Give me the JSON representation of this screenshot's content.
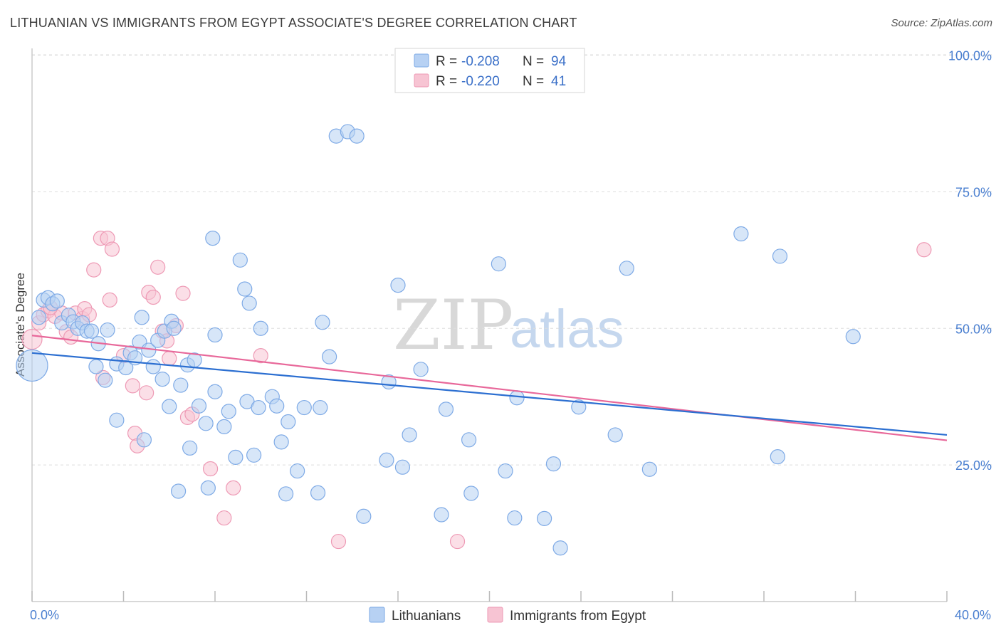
{
  "title": "LITHUANIAN VS IMMIGRANTS FROM EGYPT ASSOCIATE'S DEGREE CORRELATION CHART",
  "source": "Source: ZipAtlas.com",
  "watermark": {
    "zip": "ZIP",
    "atlas": "atlas"
  },
  "colors": {
    "blue_fill": "#b7d1f3",
    "blue_stroke": "#7eaae6",
    "blue_line": "#2c6fd1",
    "pink_fill": "#f7c4d3",
    "pink_stroke": "#ee9ab5",
    "pink_line": "#e8689a",
    "axis_label": "#4a7fd0",
    "grid": "#dddddd"
  },
  "legend": {
    "rows": [
      {
        "r_label": "R =",
        "r_value": "-0.208",
        "n_label": "N =",
        "n_value": "94"
      },
      {
        "r_label": "R =",
        "r_value": "-0.220",
        "n_label": "N =",
        "n_value": "41"
      }
    ]
  },
  "chart_data": {
    "type": "scatter",
    "title": "LITHUANIAN VS IMMIGRANTS FROM EGYPT ASSOCIATE'S DEGREE CORRELATION CHART",
    "xlabel": "",
    "ylabel": "Associate's Degree",
    "xlim": [
      0,
      40
    ],
    "ylim": [
      0,
      102
    ],
    "x_tick_labels": [
      "0.0%",
      "40.0%"
    ],
    "y_ticks": [
      25,
      50,
      75,
      100
    ],
    "y_tick_labels": [
      "25.0%",
      "50.0%",
      "75.0%",
      "100.0%"
    ],
    "grid": "horizontal dashed",
    "series": [
      {
        "name": "Lithuanians",
        "color": "#b7d1f3",
        "regression": {
          "x": [
            0,
            40
          ],
          "y": [
            45.5,
            30.5
          ]
        },
        "points": [
          [
            0.0,
            43.2,
            22
          ],
          [
            0.3,
            52.0,
            10
          ],
          [
            0.5,
            55.2,
            10
          ],
          [
            0.7,
            55.6,
            10
          ],
          [
            0.9,
            54.5,
            10
          ],
          [
            1.1,
            55.0,
            10
          ],
          [
            1.3,
            51.0,
            10
          ],
          [
            1.6,
            52.4,
            10
          ],
          [
            1.8,
            51.2,
            10
          ],
          [
            2.0,
            50.0,
            10
          ],
          [
            2.2,
            51.0,
            10
          ],
          [
            2.4,
            49.5,
            10
          ],
          [
            2.6,
            49.5,
            10
          ],
          [
            2.9,
            47.2,
            10
          ],
          [
            3.3,
            49.7,
            10
          ],
          [
            2.8,
            43.0,
            10
          ],
          [
            3.2,
            40.5,
            10
          ],
          [
            3.7,
            43.5,
            10
          ],
          [
            4.1,
            42.8,
            10
          ],
          [
            4.3,
            45.5,
            10
          ],
          [
            4.5,
            44.6,
            10
          ],
          [
            4.7,
            47.5,
            10
          ],
          [
            4.8,
            52.0,
            10
          ],
          [
            5.1,
            46.0,
            10
          ],
          [
            5.3,
            43.0,
            10
          ],
          [
            5.5,
            47.8,
            10
          ],
          [
            5.7,
            40.7,
            10
          ],
          [
            5.8,
            49.5,
            10
          ],
          [
            6.1,
            51.3,
            10
          ],
          [
            6.2,
            50.0,
            10
          ],
          [
            6.5,
            39.6,
            10
          ],
          [
            6.8,
            43.3,
            10
          ],
          [
            7.1,
            44.2,
            10
          ],
          [
            3.7,
            33.2,
            10
          ],
          [
            4.9,
            29.6,
            10
          ],
          [
            6.0,
            35.7,
            10
          ],
          [
            7.3,
            35.8,
            10
          ],
          [
            7.6,
            32.6,
            10
          ],
          [
            8.0,
            38.4,
            10
          ],
          [
            8.4,
            32.0,
            10
          ],
          [
            8.6,
            34.8,
            10
          ],
          [
            9.4,
            36.6,
            10
          ],
          [
            9.9,
            35.5,
            10
          ],
          [
            10.5,
            37.5,
            10
          ],
          [
            10.7,
            35.8,
            10
          ],
          [
            11.2,
            32.9,
            10
          ],
          [
            11.9,
            35.5,
            10
          ],
          [
            12.6,
            35.5,
            10
          ],
          [
            6.9,
            28.1,
            10
          ],
          [
            8.9,
            26.4,
            10
          ],
          [
            9.7,
            26.8,
            10
          ],
          [
            10.9,
            29.2,
            10
          ],
          [
            11.6,
            23.9,
            10
          ],
          [
            12.5,
            19.9,
            10
          ],
          [
            6.4,
            20.2,
            10
          ],
          [
            7.7,
            20.8,
            10
          ],
          [
            11.1,
            19.7,
            10
          ],
          [
            7.9,
            66.5,
            10
          ],
          [
            9.1,
            62.5,
            10
          ],
          [
            9.3,
            57.2,
            10
          ],
          [
            9.5,
            54.6,
            10
          ],
          [
            10.0,
            50.0,
            10
          ],
          [
            8.0,
            48.8,
            10
          ],
          [
            12.7,
            51.1,
            10
          ],
          [
            13.0,
            44.8,
            10
          ],
          [
            13.3,
            85.2,
            10
          ],
          [
            13.8,
            86.0,
            10
          ],
          [
            14.2,
            85.2,
            10
          ],
          [
            15.6,
            40.2,
            10
          ],
          [
            16.0,
            57.9,
            10
          ],
          [
            17.0,
            42.5,
            10
          ],
          [
            16.5,
            30.5,
            10
          ],
          [
            15.5,
            25.9,
            10
          ],
          [
            16.2,
            24.6,
            10
          ],
          [
            14.5,
            15.6,
            10
          ],
          [
            18.1,
            35.2,
            10
          ],
          [
            19.1,
            29.6,
            10
          ],
          [
            19.2,
            19.8,
            10
          ],
          [
            20.7,
            23.9,
            10
          ],
          [
            17.9,
            15.9,
            10
          ],
          [
            20.4,
            61.8,
            10
          ],
          [
            21.2,
            37.3,
            10
          ],
          [
            21.1,
            15.3,
            10
          ],
          [
            22.4,
            15.2,
            10
          ],
          [
            22.8,
            25.2,
            10
          ],
          [
            23.9,
            35.6,
            10
          ],
          [
            23.1,
            9.8,
            10
          ],
          [
            26.0,
            61.0,
            10
          ],
          [
            25.5,
            30.5,
            10
          ],
          [
            27.0,
            24.2,
            10
          ],
          [
            31.0,
            67.3,
            10
          ],
          [
            32.7,
            63.2,
            10
          ],
          [
            32.6,
            26.5,
            10
          ],
          [
            35.9,
            48.5,
            10
          ]
        ]
      },
      {
        "name": "Immigrants from Egypt",
        "color": "#f7c4d3",
        "regression": {
          "x": [
            0,
            40
          ],
          "y": [
            48.7,
            29.5
          ]
        },
        "points": [
          [
            0.0,
            48.0,
            14
          ],
          [
            0.3,
            51.0,
            10
          ],
          [
            0.5,
            52.5,
            10
          ],
          [
            0.7,
            53.2,
            10
          ],
          [
            1.0,
            52.2,
            10
          ],
          [
            1.3,
            52.8,
            10
          ],
          [
            1.5,
            49.4,
            10
          ],
          [
            1.7,
            48.4,
            10
          ],
          [
            1.9,
            52.8,
            10
          ],
          [
            2.2,
            51.8,
            10
          ],
          [
            2.3,
            53.6,
            10
          ],
          [
            2.5,
            52.5,
            10
          ],
          [
            2.7,
            60.7,
            10
          ],
          [
            3.0,
            66.5,
            10
          ],
          [
            3.3,
            66.5,
            10
          ],
          [
            3.5,
            64.5,
            10
          ],
          [
            3.4,
            55.2,
            10
          ],
          [
            3.1,
            41.0,
            10
          ],
          [
            4.0,
            45.0,
            10
          ],
          [
            4.4,
            39.5,
            10
          ],
          [
            4.5,
            30.8,
            10
          ],
          [
            4.6,
            28.5,
            10
          ],
          [
            5.0,
            38.2,
            10
          ],
          [
            5.1,
            56.6,
            10
          ],
          [
            5.3,
            55.7,
            10
          ],
          [
            5.5,
            61.2,
            10
          ],
          [
            5.7,
            49.5,
            10
          ],
          [
            5.9,
            47.7,
            10
          ],
          [
            6.0,
            44.5,
            10
          ],
          [
            6.3,
            50.5,
            10
          ],
          [
            6.6,
            56.4,
            10
          ],
          [
            6.8,
            33.7,
            10
          ],
          [
            7.0,
            34.3,
            10
          ],
          [
            7.8,
            24.3,
            10
          ],
          [
            8.8,
            20.8,
            10
          ],
          [
            8.4,
            15.3,
            10
          ],
          [
            10.0,
            45.0,
            10
          ],
          [
            13.4,
            11.0,
            10
          ],
          [
            18.6,
            11.0,
            10
          ],
          [
            39.0,
            64.4,
            10
          ],
          [
            0.8,
            53.8,
            10
          ]
        ]
      }
    ]
  },
  "bottom_legend": {
    "items": [
      {
        "label": "Lithuanians"
      },
      {
        "label": "Immigrants from Egypt"
      }
    ]
  }
}
